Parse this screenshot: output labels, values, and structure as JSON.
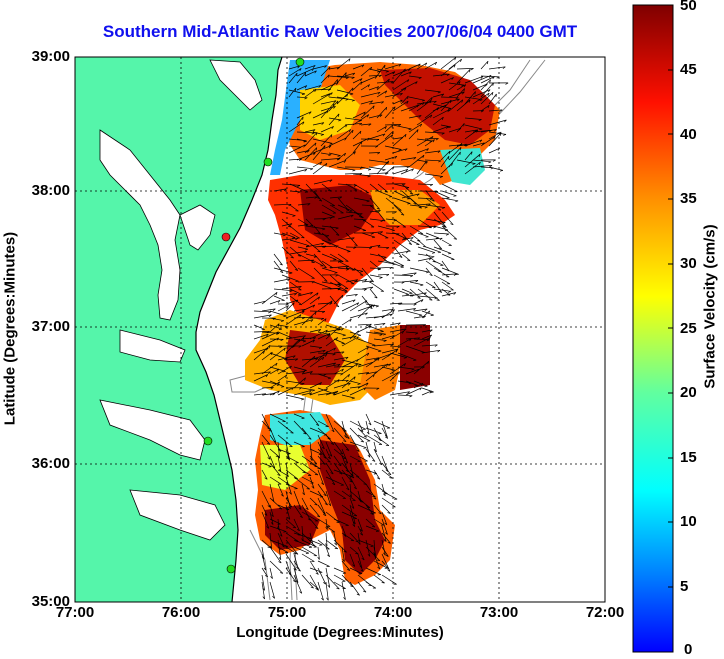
{
  "title": "Southern Mid-Atlantic Raw Velocities 2007/06/04 0400 GMT",
  "xlabel": "Longitude (Degrees:Minutes)",
  "ylabel": "Latitude (Degrees:Minutes)",
  "colorbar": {
    "label": "Surface Velocity (cm/s)",
    "ticks": [
      "50",
      "45",
      "40",
      "35",
      "30",
      "25",
      "20",
      "15",
      "10",
      "5",
      "0"
    ]
  },
  "axes": {
    "x_ticks": [
      "77:00",
      "76:00",
      "75:00",
      "74:00",
      "73:00",
      "72:00"
    ],
    "y_ticks": [
      "39:00",
      "38:00",
      "37:00",
      "36:00",
      "35:00"
    ]
  },
  "colors": {
    "land": "#55f5aa",
    "title": "#1010ee",
    "high": "#7f0000",
    "low": "#0050ff"
  }
}
